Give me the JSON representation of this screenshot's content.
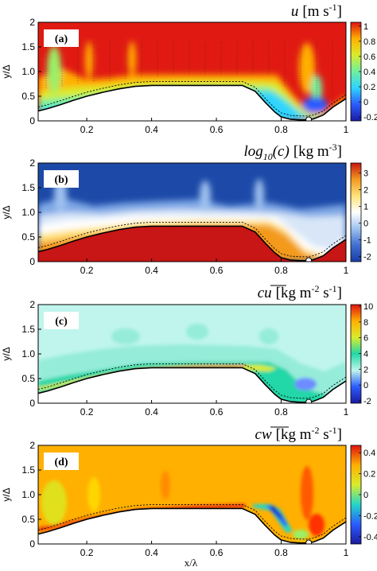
{
  "figure": {
    "shared_xlabel": "x/λ",
    "shared_ylabel": "y/Δ"
  },
  "chart_data": [
    {
      "type": "heatmap",
      "panel_label": "(a)",
      "title_symbol": "u",
      "title_units": "[m s",
      "title_sup": "-1",
      "title_close": "]",
      "xlabel": "",
      "ylabel": "y/Δ",
      "xlim": [
        0.05,
        1.0
      ],
      "ylim": [
        0,
        2
      ],
      "xticks": [
        "0.2",
        "0.4",
        "0.6",
        "0.8",
        "1"
      ],
      "yticks": [
        "0",
        "0.5",
        "1.0",
        "1.5",
        "2"
      ],
      "colorbar": {
        "ticks": [
          "1",
          "0.8",
          "0.6",
          "0.4",
          "0.2",
          "0",
          "-0.2"
        ],
        "range": [
          -0.25,
          1.05
        ],
        "colors": [
          "#1a1aa0",
          "#2b5cff",
          "#2fd4ff",
          "#6ef0a0",
          "#d9ec2c",
          "#ffb000",
          "#e11212"
        ]
      },
      "colormap": "jet",
      "description": "Streamwise velocity: high (red) above bed, low near surface, recirculation in trough near x/λ≈0.85"
    },
    {
      "type": "heatmap",
      "panel_label": "(b)",
      "title_symbol": "log",
      "title_sub": "10",
      "title_rest": "(c)",
      "title_units": "[kg m",
      "title_sup": "-3",
      "title_close": "]",
      "xlabel": "",
      "ylabel": "y/Δ",
      "xlim": [
        0.05,
        1.0
      ],
      "ylim": [
        0,
        2
      ],
      "xticks": [
        "0.2",
        "0.4",
        "0.6",
        "0.8",
        "1"
      ],
      "yticks": [
        "0",
        "0.5",
        "1.0",
        "1.5",
        "2"
      ],
      "colorbar": {
        "ticks": [
          "3",
          "2",
          "1",
          "0",
          "-1",
          "-2"
        ],
        "range": [
          -2.3,
          3.6
        ],
        "colors": [
          "#1a3da8",
          "#3f6fcf",
          "#9ec1ee",
          "#ffffff",
          "#ffe27a",
          "#f39a1f",
          "#c81515"
        ]
      },
      "colormap": "diverging-blue-white-red",
      "description": "Log concentration: high (red) inside bed, low (blue) in the flow"
    },
    {
      "type": "heatmap",
      "panel_label": "(c)",
      "title_symbol": "cu",
      "title_units": "[kg m",
      "title_sup": "-2",
      "title_mid": " s",
      "title_sup2": "-1",
      "title_close": "]",
      "xlabel": "",
      "ylabel": "y/Δ",
      "xlim": [
        0.05,
        1.0
      ],
      "ylim": [
        0,
        2
      ],
      "xticks": [
        "0.2",
        "0.4",
        "0.6",
        "0.8",
        "1"
      ],
      "yticks": [
        "0",
        "0.5",
        "1.0",
        "1.5",
        "2"
      ],
      "colorbar": {
        "ticks": [
          "10",
          "8",
          "6",
          "4",
          "2",
          "0",
          "-2"
        ],
        "range": [
          -2.3,
          10.2
        ],
        "colors": [
          "#1a1aa0",
          "#2b5cff",
          "#bff5ec",
          "#22d7a8",
          "#d9ec2c",
          "#ffb000",
          "#e11212"
        ]
      },
      "colormap": "jet",
      "description": "Streamwise sediment flux concentrated in a thin layer above the bed surface"
    },
    {
      "type": "heatmap",
      "panel_label": "(d)",
      "title_symbol": "cw",
      "title_units": "[kg m",
      "title_sup": "-2",
      "title_mid": " s",
      "title_sup2": "-1",
      "title_close": "]",
      "xlabel": "x/λ",
      "ylabel": "y/Δ",
      "xlim": [
        0.05,
        1.0
      ],
      "ylim": [
        0,
        2
      ],
      "xticks": [
        "0.2",
        "0.4",
        "0.6",
        "0.8",
        "1"
      ],
      "yticks": [
        "0",
        "0.5",
        "1.0",
        "1.5",
        "2"
      ],
      "colorbar": {
        "ticks": [
          "0.4",
          "0.2",
          "0",
          "-0.2",
          "-0.4"
        ],
        "range": [
          -0.47,
          0.47
        ],
        "colors": [
          "#1a1aa0",
          "#2b5cff",
          "#22d7c8",
          "#d9ec2c",
          "#ffb000",
          "#e11212"
        ]
      },
      "colormap": "jet",
      "description": "Vertical sediment flux: near-zero (orange) in flow, positive red band on stoss side, negative blue on lee side"
    }
  ],
  "bed_profile": {
    "x": [
      0.05,
      0.08,
      0.12,
      0.16,
      0.2,
      0.25,
      0.3,
      0.35,
      0.4,
      0.5,
      0.6,
      0.68,
      0.72,
      0.75,
      0.78,
      0.8,
      0.83,
      0.86,
      0.88,
      0.9,
      0.93,
      0.96,
      1.0
    ],
    "y": [
      0.2,
      0.25,
      0.33,
      0.42,
      0.5,
      0.58,
      0.65,
      0.7,
      0.72,
      0.72,
      0.72,
      0.72,
      0.6,
      0.38,
      0.18,
      0.08,
      0.03,
      0.02,
      0.02,
      0.04,
      0.12,
      0.28,
      0.45
    ]
  },
  "marker_x": 0.885
}
